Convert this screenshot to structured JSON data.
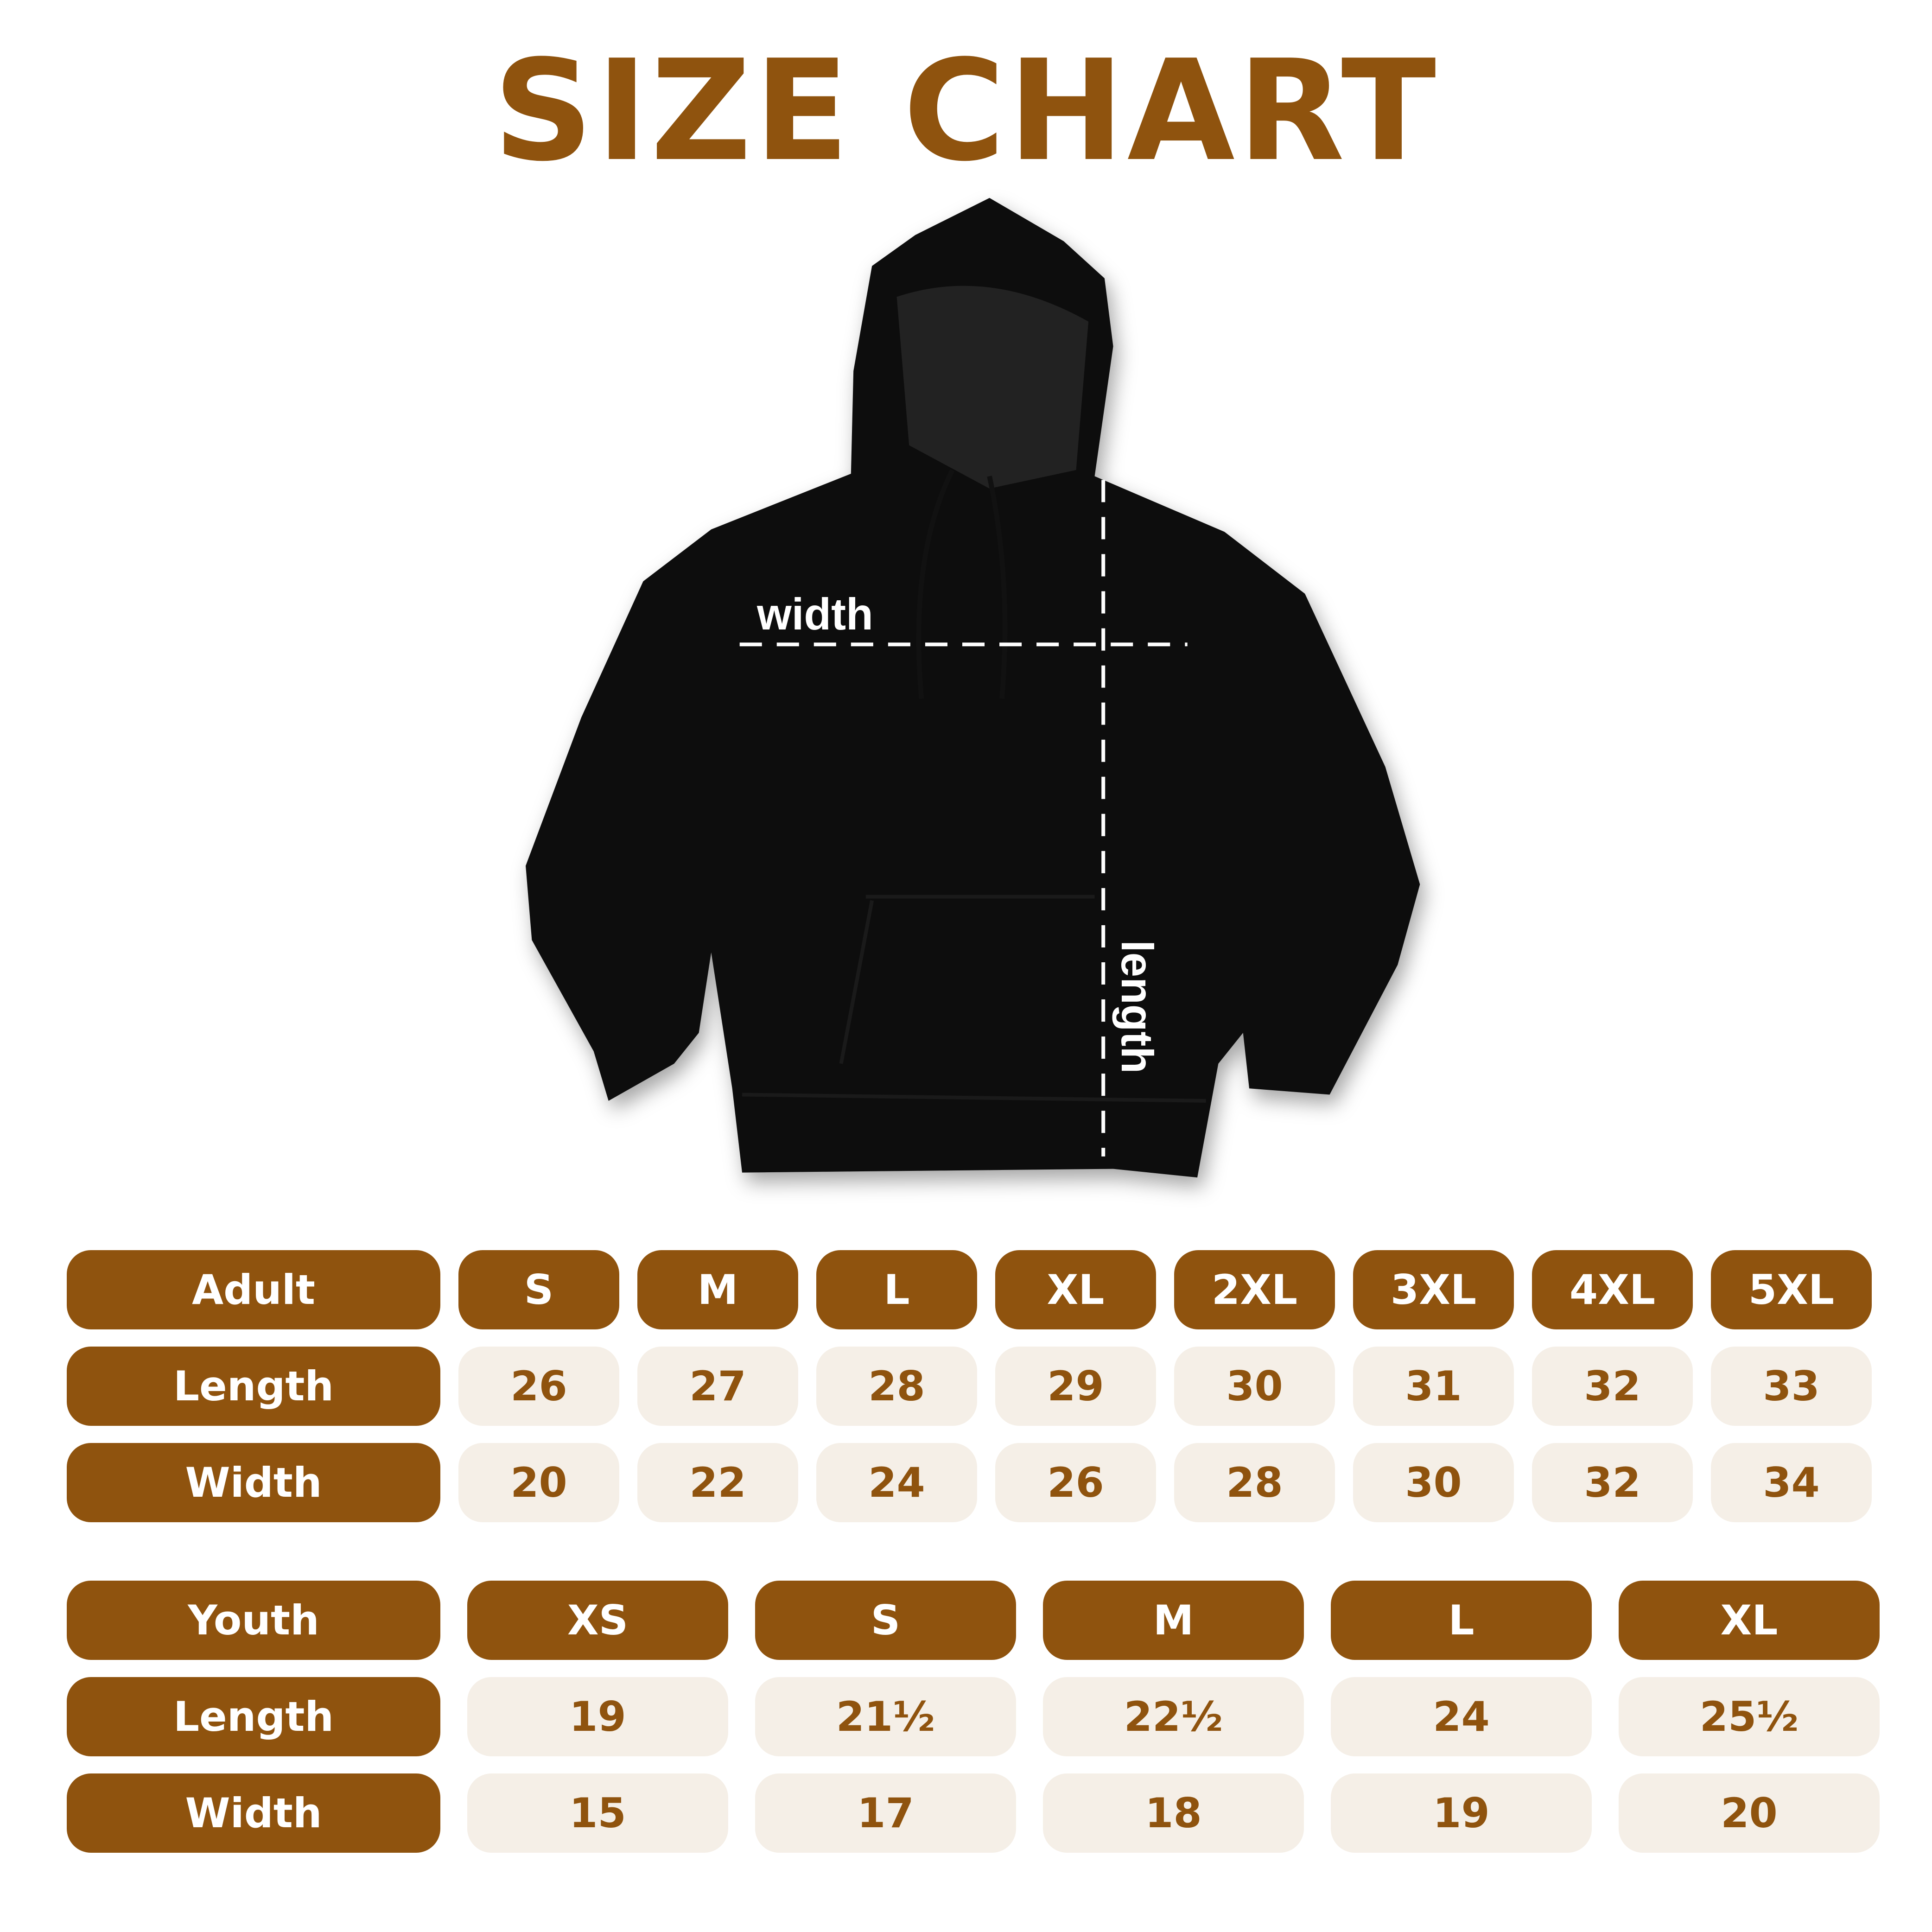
{
  "title": "SIZE CHART",
  "colors": {
    "brand": "#8f530e",
    "cell_bg": "#f5efe7",
    "garment": "#0b0b0b"
  },
  "diagram": {
    "width_label": "width",
    "length_label": "length"
  },
  "adult": {
    "header": "Adult",
    "sizes": [
      "S",
      "M",
      "L",
      "XL",
      "2XL",
      "3XL",
      "4XL",
      "5XL"
    ],
    "rows": [
      {
        "label": "Length",
        "values": [
          "26",
          "27",
          "28",
          "29",
          "30",
          "31",
          "32",
          "33"
        ]
      },
      {
        "label": "Width",
        "values": [
          "20",
          "22",
          "24",
          "26",
          "28",
          "30",
          "32",
          "34"
        ]
      }
    ]
  },
  "youth": {
    "header": "Youth",
    "sizes": [
      "XS",
      "S",
      "M",
      "L",
      "XL"
    ],
    "rows": [
      {
        "label": "Length",
        "values": [
          "19",
          "21½",
          "22½",
          "24",
          "25½"
        ]
      },
      {
        "label": "Width",
        "values": [
          "15",
          "17",
          "18",
          "19",
          "20"
        ]
      }
    ]
  }
}
